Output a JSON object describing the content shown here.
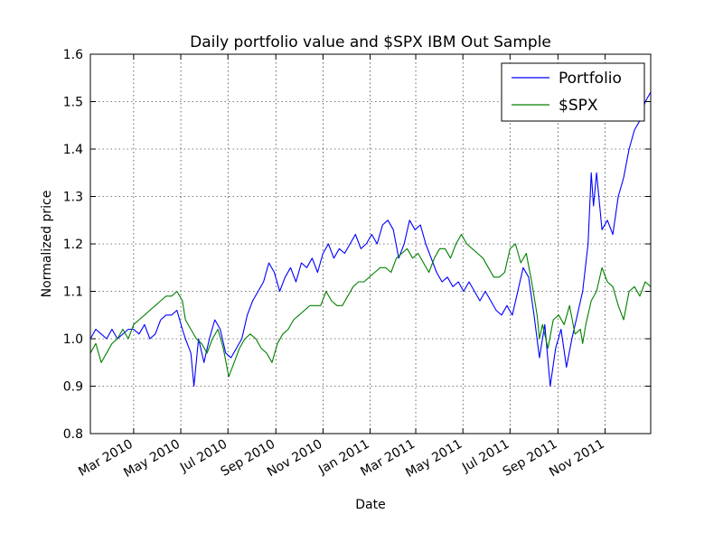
{
  "chart_data": {
    "type": "line",
    "title": "Daily portfolio value and $SPX IBM Out Sample",
    "xlabel": "Date",
    "ylabel": "Normalized price",
    "xlim": [
      "2010-01-04",
      "2011-12-30"
    ],
    "ylim": [
      0.8,
      1.6
    ],
    "yticks": [
      "0.8",
      "0.9",
      "1.0",
      "1.1",
      "1.2",
      "1.3",
      "1.4",
      "1.5",
      "1.6"
    ],
    "xticks": [
      {
        "date": "2010-03-01",
        "label": "Mar 2010"
      },
      {
        "date": "2010-05-01",
        "label": "May 2010"
      },
      {
        "date": "2010-07-01",
        "label": "Jul 2010"
      },
      {
        "date": "2010-09-01",
        "label": "Sep 2010"
      },
      {
        "date": "2010-11-01",
        "label": "Nov 2010"
      },
      {
        "date": "2011-01-01",
        "label": "Jan 2011"
      },
      {
        "date": "2011-03-01",
        "label": "Mar 2011"
      },
      {
        "date": "2011-05-01",
        "label": "May 2011"
      },
      {
        "date": "2011-07-01",
        "label": "Jul 2011"
      },
      {
        "date": "2011-09-01",
        "label": "Sep 2011"
      },
      {
        "date": "2011-11-01",
        "label": "Nov 2011"
      }
    ],
    "grid": true,
    "legend_position": "top-right",
    "series": [
      {
        "name": "Portfolio",
        "color": "#0000ff",
        "points": [
          [
            "2010-01-04",
            1.0
          ],
          [
            "2010-01-11",
            1.02
          ],
          [
            "2010-01-18",
            1.01
          ],
          [
            "2010-01-25",
            1.0
          ],
          [
            "2010-02-01",
            1.02
          ],
          [
            "2010-02-08",
            1.0
          ],
          [
            "2010-02-15",
            1.01
          ],
          [
            "2010-02-22",
            1.02
          ],
          [
            "2010-03-01",
            1.02
          ],
          [
            "2010-03-08",
            1.01
          ],
          [
            "2010-03-15",
            1.03
          ],
          [
            "2010-03-22",
            1.0
          ],
          [
            "2010-03-29",
            1.01
          ],
          [
            "2010-04-05",
            1.04
          ],
          [
            "2010-04-12",
            1.05
          ],
          [
            "2010-04-19",
            1.05
          ],
          [
            "2010-04-26",
            1.06
          ],
          [
            "2010-05-03",
            1.02
          ],
          [
            "2010-05-07",
            1.0
          ],
          [
            "2010-05-14",
            0.97
          ],
          [
            "2010-05-18",
            0.9
          ],
          [
            "2010-05-24",
            1.0
          ],
          [
            "2010-05-31",
            0.95
          ],
          [
            "2010-06-07",
            1.0
          ],
          [
            "2010-06-14",
            1.04
          ],
          [
            "2010-06-21",
            1.02
          ],
          [
            "2010-06-28",
            0.97
          ],
          [
            "2010-07-05",
            0.96
          ],
          [
            "2010-07-12",
            0.98
          ],
          [
            "2010-07-19",
            1.0
          ],
          [
            "2010-07-26",
            1.05
          ],
          [
            "2010-08-02",
            1.08
          ],
          [
            "2010-08-09",
            1.1
          ],
          [
            "2010-08-16",
            1.12
          ],
          [
            "2010-08-23",
            1.16
          ],
          [
            "2010-08-30",
            1.14
          ],
          [
            "2010-09-06",
            1.1
          ],
          [
            "2010-09-13",
            1.13
          ],
          [
            "2010-09-20",
            1.15
          ],
          [
            "2010-09-27",
            1.12
          ],
          [
            "2010-10-04",
            1.16
          ],
          [
            "2010-10-11",
            1.15
          ],
          [
            "2010-10-18",
            1.17
          ],
          [
            "2010-10-25",
            1.14
          ],
          [
            "2010-11-01",
            1.18
          ],
          [
            "2010-11-08",
            1.2
          ],
          [
            "2010-11-15",
            1.17
          ],
          [
            "2010-11-22",
            1.19
          ],
          [
            "2010-11-29",
            1.18
          ],
          [
            "2010-12-06",
            1.2
          ],
          [
            "2010-12-13",
            1.22
          ],
          [
            "2010-12-20",
            1.19
          ],
          [
            "2010-12-27",
            1.2
          ],
          [
            "2011-01-03",
            1.22
          ],
          [
            "2011-01-10",
            1.2
          ],
          [
            "2011-01-17",
            1.24
          ],
          [
            "2011-01-24",
            1.25
          ],
          [
            "2011-01-31",
            1.23
          ],
          [
            "2011-02-07",
            1.17
          ],
          [
            "2011-02-14",
            1.2
          ],
          [
            "2011-02-21",
            1.25
          ],
          [
            "2011-02-28",
            1.23
          ],
          [
            "2011-03-07",
            1.24
          ],
          [
            "2011-03-14",
            1.2
          ],
          [
            "2011-03-21",
            1.17
          ],
          [
            "2011-03-28",
            1.14
          ],
          [
            "2011-04-04",
            1.12
          ],
          [
            "2011-04-11",
            1.13
          ],
          [
            "2011-04-18",
            1.11
          ],
          [
            "2011-04-25",
            1.12
          ],
          [
            "2011-05-02",
            1.1
          ],
          [
            "2011-05-09",
            1.12
          ],
          [
            "2011-05-16",
            1.1
          ],
          [
            "2011-05-23",
            1.08
          ],
          [
            "2011-05-30",
            1.1
          ],
          [
            "2011-06-06",
            1.08
          ],
          [
            "2011-06-13",
            1.06
          ],
          [
            "2011-06-20",
            1.05
          ],
          [
            "2011-06-27",
            1.07
          ],
          [
            "2011-07-04",
            1.05
          ],
          [
            "2011-07-11",
            1.1
          ],
          [
            "2011-07-18",
            1.15
          ],
          [
            "2011-07-25",
            1.13
          ],
          [
            "2011-08-01",
            1.05
          ],
          [
            "2011-08-08",
            0.96
          ],
          [
            "2011-08-15",
            1.03
          ],
          [
            "2011-08-22",
            0.9
          ],
          [
            "2011-08-29",
            0.98
          ],
          [
            "2011-09-05",
            1.02
          ],
          [
            "2011-09-12",
            0.94
          ],
          [
            "2011-09-19",
            1.0
          ],
          [
            "2011-09-26",
            1.05
          ],
          [
            "2011-10-03",
            1.1
          ],
          [
            "2011-10-10",
            1.2
          ],
          [
            "2011-10-14",
            1.35
          ],
          [
            "2011-10-17",
            1.28
          ],
          [
            "2011-10-21",
            1.35
          ],
          [
            "2011-10-28",
            1.23
          ],
          [
            "2011-11-04",
            1.25
          ],
          [
            "2011-11-11",
            1.22
          ],
          [
            "2011-11-18",
            1.3
          ],
          [
            "2011-11-25",
            1.34
          ],
          [
            "2011-12-02",
            1.4
          ],
          [
            "2011-12-09",
            1.44
          ],
          [
            "2011-12-16",
            1.46
          ],
          [
            "2011-12-23",
            1.5
          ],
          [
            "2011-12-30",
            1.52
          ]
        ]
      },
      {
        "name": "$SPX",
        "color": "#008000",
        "points": [
          [
            "2010-01-04",
            0.97
          ],
          [
            "2010-01-11",
            0.99
          ],
          [
            "2010-01-18",
            0.95
          ],
          [
            "2010-01-25",
            0.97
          ],
          [
            "2010-02-01",
            0.99
          ],
          [
            "2010-02-08",
            1.0
          ],
          [
            "2010-02-15",
            1.02
          ],
          [
            "2010-02-22",
            1.0
          ],
          [
            "2010-03-01",
            1.03
          ],
          [
            "2010-03-08",
            1.04
          ],
          [
            "2010-03-15",
            1.05
          ],
          [
            "2010-03-22",
            1.06
          ],
          [
            "2010-03-29",
            1.07
          ],
          [
            "2010-04-05",
            1.08
          ],
          [
            "2010-04-12",
            1.09
          ],
          [
            "2010-04-19",
            1.09
          ],
          [
            "2010-04-26",
            1.1
          ],
          [
            "2010-05-03",
            1.08
          ],
          [
            "2010-05-07",
            1.04
          ],
          [
            "2010-05-14",
            1.02
          ],
          [
            "2010-05-21",
            1.0
          ],
          [
            "2010-05-28",
            0.99
          ],
          [
            "2010-06-04",
            0.97
          ],
          [
            "2010-06-11",
            1.0
          ],
          [
            "2010-06-18",
            1.02
          ],
          [
            "2010-06-25",
            0.98
          ],
          [
            "2010-07-02",
            0.92
          ],
          [
            "2010-07-09",
            0.95
          ],
          [
            "2010-07-16",
            0.98
          ],
          [
            "2010-07-23",
            1.0
          ],
          [
            "2010-07-30",
            1.01
          ],
          [
            "2010-08-06",
            1.0
          ],
          [
            "2010-08-13",
            0.98
          ],
          [
            "2010-08-20",
            0.97
          ],
          [
            "2010-08-27",
            0.95
          ],
          [
            "2010-09-03",
            0.99
          ],
          [
            "2010-09-10",
            1.01
          ],
          [
            "2010-09-17",
            1.02
          ],
          [
            "2010-09-24",
            1.04
          ],
          [
            "2010-10-01",
            1.05
          ],
          [
            "2010-10-08",
            1.06
          ],
          [
            "2010-10-15",
            1.07
          ],
          [
            "2010-10-22",
            1.07
          ],
          [
            "2010-10-29",
            1.07
          ],
          [
            "2010-11-05",
            1.1
          ],
          [
            "2010-11-12",
            1.08
          ],
          [
            "2010-11-19",
            1.07
          ],
          [
            "2010-11-26",
            1.07
          ],
          [
            "2010-12-03",
            1.09
          ],
          [
            "2010-12-10",
            1.11
          ],
          [
            "2010-12-17",
            1.12
          ],
          [
            "2010-12-24",
            1.12
          ],
          [
            "2010-12-31",
            1.13
          ],
          [
            "2011-01-07",
            1.14
          ],
          [
            "2011-01-14",
            1.15
          ],
          [
            "2011-01-21",
            1.15
          ],
          [
            "2011-01-28",
            1.14
          ],
          [
            "2011-02-04",
            1.17
          ],
          [
            "2011-02-11",
            1.18
          ],
          [
            "2011-02-18",
            1.19
          ],
          [
            "2011-02-25",
            1.17
          ],
          [
            "2011-03-04",
            1.18
          ],
          [
            "2011-03-11",
            1.16
          ],
          [
            "2011-03-18",
            1.14
          ],
          [
            "2011-03-25",
            1.17
          ],
          [
            "2011-04-01",
            1.19
          ],
          [
            "2011-04-08",
            1.19
          ],
          [
            "2011-04-15",
            1.17
          ],
          [
            "2011-04-22",
            1.2
          ],
          [
            "2011-04-29",
            1.22
          ],
          [
            "2011-05-06",
            1.2
          ],
          [
            "2011-05-13",
            1.19
          ],
          [
            "2011-05-20",
            1.18
          ],
          [
            "2011-05-27",
            1.17
          ],
          [
            "2011-06-03",
            1.15
          ],
          [
            "2011-06-10",
            1.13
          ],
          [
            "2011-06-17",
            1.13
          ],
          [
            "2011-06-24",
            1.14
          ],
          [
            "2011-07-01",
            1.19
          ],
          [
            "2011-07-08",
            1.2
          ],
          [
            "2011-07-15",
            1.16
          ],
          [
            "2011-07-22",
            1.18
          ],
          [
            "2011-07-29",
            1.12
          ],
          [
            "2011-08-05",
            1.05
          ],
          [
            "2011-08-08",
            1.0
          ],
          [
            "2011-08-12",
            1.03
          ],
          [
            "2011-08-19",
            0.98
          ],
          [
            "2011-08-26",
            1.04
          ],
          [
            "2011-09-02",
            1.05
          ],
          [
            "2011-09-09",
            1.03
          ],
          [
            "2011-09-16",
            1.07
          ],
          [
            "2011-09-23",
            1.01
          ],
          [
            "2011-09-30",
            1.02
          ],
          [
            "2011-10-03",
            0.99
          ],
          [
            "2011-10-07",
            1.03
          ],
          [
            "2011-10-14",
            1.08
          ],
          [
            "2011-10-21",
            1.1
          ],
          [
            "2011-10-28",
            1.15
          ],
          [
            "2011-11-04",
            1.12
          ],
          [
            "2011-11-11",
            1.11
          ],
          [
            "2011-11-18",
            1.07
          ],
          [
            "2011-11-25",
            1.04
          ],
          [
            "2011-12-02",
            1.1
          ],
          [
            "2011-12-09",
            1.11
          ],
          [
            "2011-12-16",
            1.09
          ],
          [
            "2011-12-23",
            1.12
          ],
          [
            "2011-12-30",
            1.11
          ]
        ]
      }
    ]
  }
}
